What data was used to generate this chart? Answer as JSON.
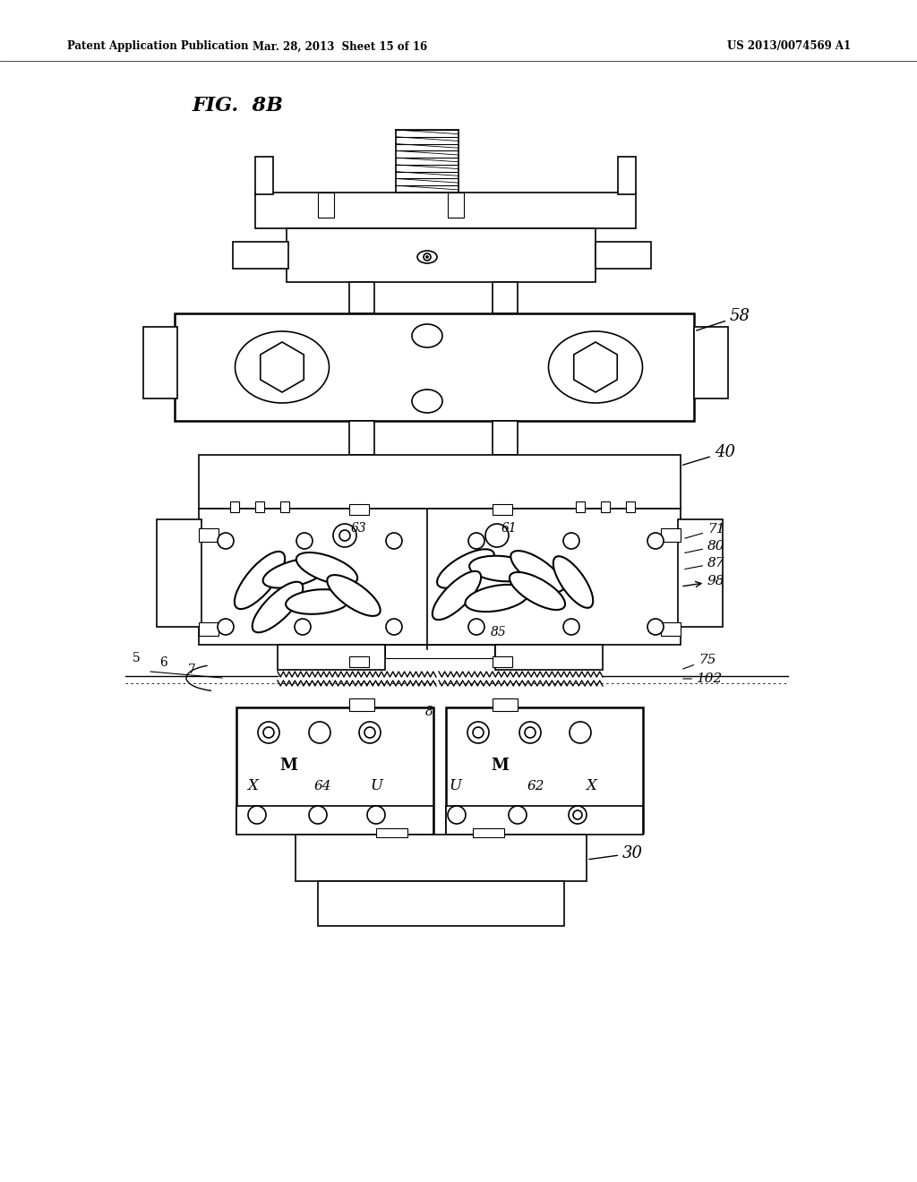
{
  "bg_color": "#ffffff",
  "header_left": "Patent Application Publication",
  "header_mid": "Mar. 28, 2013  Sheet 15 of 16",
  "header_right": "US 2013/0074569 A1",
  "fig_label": "FIG.  8B"
}
